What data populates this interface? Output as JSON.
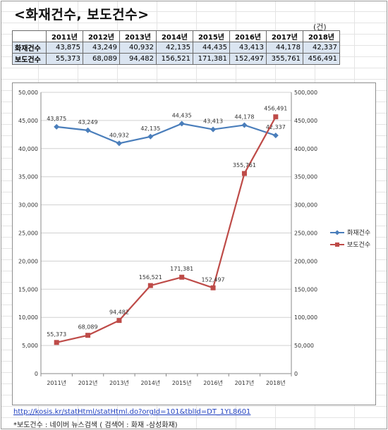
{
  "title": "<화재건수, 보도건수>",
  "unit_label": "(건)",
  "table": {
    "years": [
      "2011년",
      "2012년",
      "2013년",
      "2014년",
      "2015년",
      "2016년",
      "2017년",
      "2018년"
    ],
    "rows": [
      {
        "label": "화재건수",
        "values": [
          "43,875",
          "43,249",
          "40,932",
          "42,135",
          "44,435",
          "43,413",
          "44,178",
          "42,337"
        ]
      },
      {
        "label": "보도건수",
        "values": [
          "55,373",
          "68,089",
          "94,482",
          "156,521",
          "171,381",
          "152,497",
          "355,761",
          "456,491"
        ]
      }
    ]
  },
  "chart_data": {
    "type": "line",
    "categories": [
      "2011년",
      "2012년",
      "2013년",
      "2014년",
      "2015년",
      "2016년",
      "2017년",
      "2018년"
    ],
    "series": [
      {
        "name": "화재건수",
        "axis": "left",
        "color": "#4a7ebb",
        "marker": "diamond",
        "values": [
          43875,
          43249,
          40932,
          42135,
          44435,
          43413,
          44178,
          42337
        ],
        "labels": [
          "43,875",
          "43,249",
          "40,932",
          "42,135",
          "44,435",
          "43,413",
          "44,178",
          "42,337"
        ]
      },
      {
        "name": "보도건수",
        "axis": "right",
        "color": "#be4b48",
        "marker": "square",
        "values": [
          55373,
          68089,
          94482,
          156521,
          171381,
          152497,
          355761,
          456491
        ],
        "labels": [
          "55,373",
          "68,089",
          "94,482",
          "156,521",
          "171,381",
          "152,497",
          "355,761",
          "456,491"
        ]
      }
    ],
    "ylim_left": [
      0,
      50000
    ],
    "yticks_left": [
      "0",
      "5,000",
      "10,000",
      "15,000",
      "20,000",
      "25,000",
      "30,000",
      "35,000",
      "40,000",
      "45,000",
      "50,000"
    ],
    "ylim_right": [
      0,
      500000
    ],
    "yticks_right": [
      "0",
      "50,000",
      "100,000",
      "150,000",
      "200,000",
      "250,000",
      "300,000",
      "350,000",
      "400,000",
      "450,000",
      "500,000"
    ],
    "grid": true,
    "legend_position": "right"
  },
  "source_link": "http://kosis.kr/statHtml/statHtml.do?orgId=101&tblId=DT_1YL8601",
  "footnote": "*보도건수 : 네이버 뉴스검색 ( 검색어 : 화재 -삼성화재)"
}
